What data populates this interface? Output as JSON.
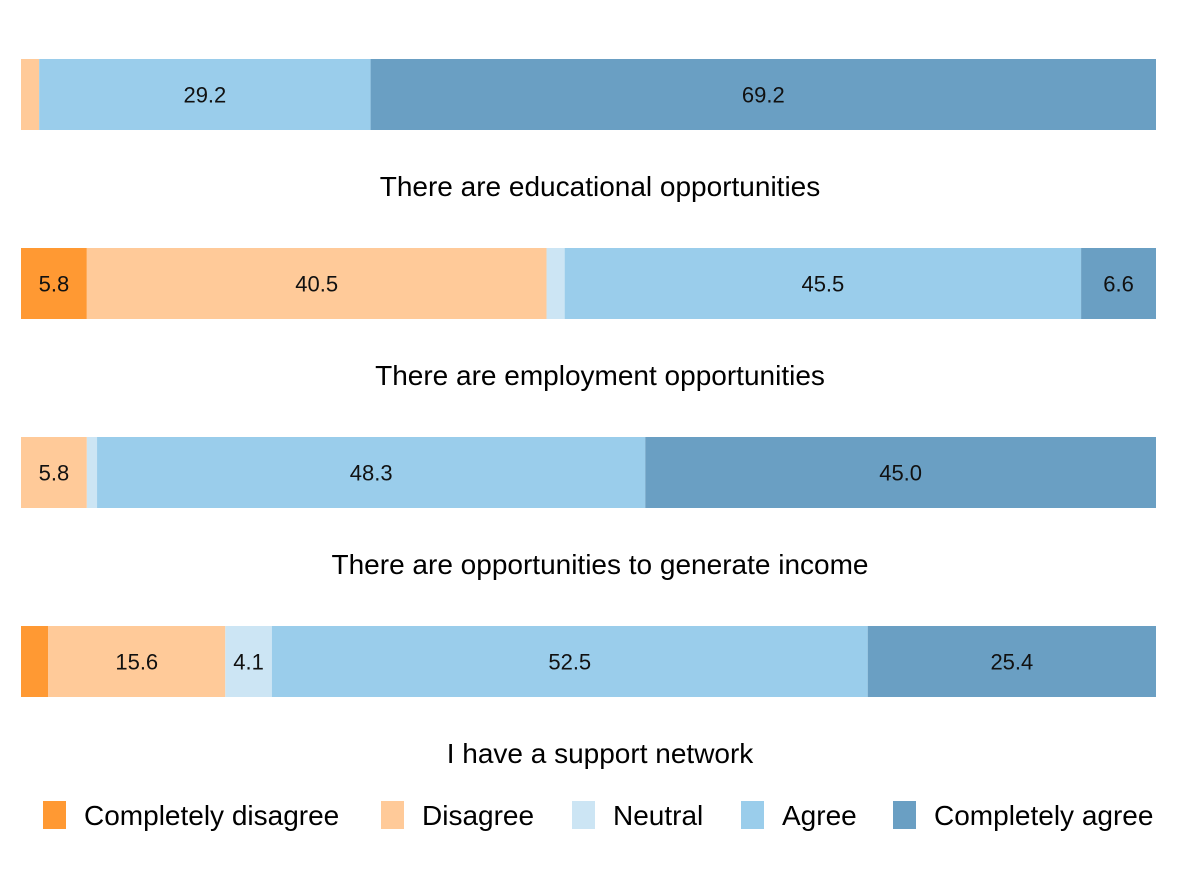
{
  "colors": {
    "Completely disagree": "#FF9933",
    "Disagree": "#FFCA99",
    "Neutral": "#CCE5F4",
    "Agree": "#9ACDEB",
    "Completely agree": "#6A9FC3"
  },
  "chart_data": {
    "type": "bar",
    "orientation": "horizontal-stacked",
    "unit": "percent",
    "xlim": [
      0,
      100
    ],
    "grid": false,
    "legend_position": "bottom",
    "legend": [
      "Completely disagree",
      "Disagree",
      "Neutral",
      "Agree",
      "Completely agree"
    ],
    "bars": [
      {
        "label": "There are educational opportunities",
        "segments": [
          {
            "category": "Completely disagree",
            "value": 0.0,
            "label": ""
          },
          {
            "category": "Disagree",
            "value": 1.6,
            "label": ""
          },
          {
            "category": "Neutral",
            "value": 0.0,
            "label": ""
          },
          {
            "category": "Agree",
            "value": 29.2,
            "label": "29.2"
          },
          {
            "category": "Completely agree",
            "value": 69.2,
            "label": "69.2"
          }
        ]
      },
      {
        "label": "There are employment opportunities",
        "segments": [
          {
            "category": "Completely disagree",
            "value": 5.8,
            "label": "5.8"
          },
          {
            "category": "Disagree",
            "value": 40.5,
            "label": "40.5"
          },
          {
            "category": "Neutral",
            "value": 1.6,
            "label": ""
          },
          {
            "category": "Agree",
            "value": 45.5,
            "label": "45.5"
          },
          {
            "category": "Completely agree",
            "value": 6.6,
            "label": "6.6"
          }
        ]
      },
      {
        "label": "There are opportunities to generate income",
        "segments": [
          {
            "category": "Completely disagree",
            "value": 0.0,
            "label": ""
          },
          {
            "category": "Disagree",
            "value": 5.8,
            "label": "5.8"
          },
          {
            "category": "Neutral",
            "value": 0.9,
            "label": ""
          },
          {
            "category": "Agree",
            "value": 48.3,
            "label": "48.3"
          },
          {
            "category": "Completely agree",
            "value": 45.0,
            "label": "45.0"
          }
        ]
      },
      {
        "label": "I have a support network",
        "segments": [
          {
            "category": "Completely disagree",
            "value": 2.4,
            "label": ""
          },
          {
            "category": "Disagree",
            "value": 15.6,
            "label": "15.6"
          },
          {
            "category": "Neutral",
            "value": 4.1,
            "label": "4.1"
          },
          {
            "category": "Agree",
            "value": 52.5,
            "label": "52.5"
          },
          {
            "category": "Completely agree",
            "value": 25.4,
            "label": "25.4"
          }
        ]
      }
    ]
  }
}
